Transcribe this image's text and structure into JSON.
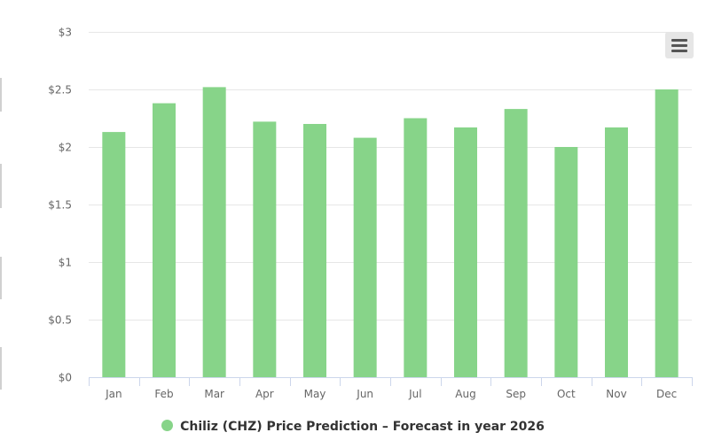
{
  "chart_data": {
    "type": "bar",
    "categories": [
      "Jan",
      "Feb",
      "Mar",
      "Apr",
      "May",
      "Jun",
      "Jul",
      "Aug",
      "Sep",
      "Oct",
      "Nov",
      "Dec"
    ],
    "series": [
      {
        "name": "Chiliz (CHZ) Price Prediction - Forecast in year 2026",
        "values": [
          2.13,
          2.38,
          2.52,
          2.22,
          2.2,
          2.08,
          2.25,
          2.17,
          2.33,
          2.0,
          2.17,
          2.5
        ],
        "color": "#87d489"
      }
    ],
    "yticks": [
      "$0",
      "$0.5",
      "$1",
      "$1.5",
      "$2",
      "$2.5",
      "$3"
    ],
    "ylim": [
      0,
      3
    ],
    "grid": true,
    "legend_position": "bottom-center"
  },
  "legend": {
    "label": "Chiliz (CHZ) Price Prediction – Forecast in year 2026"
  },
  "menu": {
    "icon": "hamburger-menu-icon"
  }
}
